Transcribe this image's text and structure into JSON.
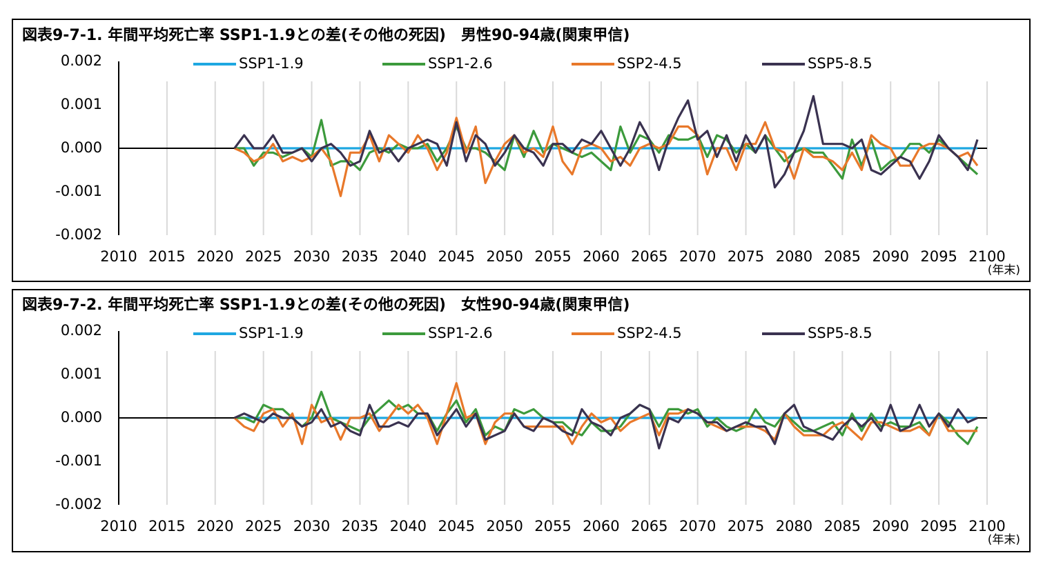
{
  "chart_data": [
    {
      "type": "line",
      "title": "図表9-7-1. 年間平均死亡率 SSP1-1.9との差(その他の死因)　男性90-94歳(関東甲信)",
      "x_unit_label": "(年末)",
      "x": [
        2022,
        2023,
        2024,
        2025,
        2026,
        2027,
        2028,
        2029,
        2030,
        2031,
        2032,
        2033,
        2034,
        2035,
        2036,
        2037,
        2038,
        2039,
        2040,
        2041,
        2042,
        2043,
        2044,
        2045,
        2046,
        2047,
        2048,
        2049,
        2050,
        2051,
        2052,
        2053,
        2054,
        2055,
        2056,
        2057,
        2058,
        2059,
        2060,
        2061,
        2062,
        2063,
        2064,
        2065,
        2066,
        2067,
        2068,
        2069,
        2070,
        2071,
        2072,
        2073,
        2074,
        2075,
        2076,
        2077,
        2078,
        2079,
        2080,
        2081,
        2082,
        2083,
        2084,
        2085,
        2086,
        2087,
        2088,
        2089,
        2090,
        2091,
        2092,
        2093,
        2094,
        2095,
        2096,
        2097,
        2098,
        2099
      ],
      "xlim": [
        2010,
        2100
      ],
      "xticks": [
        2010,
        2015,
        2020,
        2025,
        2030,
        2035,
        2040,
        2045,
        2050,
        2055,
        2060,
        2065,
        2070,
        2075,
        2080,
        2085,
        2090,
        2095,
        2100
      ],
      "ylim": [
        -0.002,
        0.002
      ],
      "yticks": [
        {
          "value": 0.002,
          "label": "0.002"
        },
        {
          "value": 0.001,
          "label": "0.001"
        },
        {
          "value": 0,
          "label": "0.000"
        },
        {
          "value": -0.001,
          "label": "-0.001"
        },
        {
          "value": -0.002,
          "label": "-0.002"
        }
      ],
      "grid": true,
      "series": [
        {
          "name": "SSP1-1.9",
          "color": "#1ea7e1",
          "values": [
            0,
            0,
            0,
            0,
            0,
            0,
            0,
            0,
            0,
            0,
            0,
            0,
            0,
            0,
            0,
            0,
            0,
            0,
            0,
            0,
            0,
            0,
            0,
            0,
            0,
            0,
            0,
            0,
            0,
            0,
            0,
            0,
            0,
            0,
            0,
            0,
            0,
            0,
            0,
            0,
            0,
            0,
            0,
            0,
            0,
            0,
            0,
            0,
            0,
            0,
            0,
            0,
            0,
            0,
            0,
            0,
            0,
            0,
            0,
            0,
            0,
            0,
            0,
            0,
            0,
            0,
            0,
            0,
            0,
            0,
            0,
            0,
            0,
            0,
            0,
            0,
            0,
            0
          ]
        },
        {
          "name": "SSP1-2.6",
          "color": "#3c9a3c",
          "values": [
            0,
            0,
            -0.0004,
            -0.0001,
            -0.0001,
            -0.0002,
            -0.0001,
            0,
            -0.0002,
            0.00065,
            -0.0004,
            -0.0003,
            -0.0003,
            -0.0005,
            -0.0001,
            0,
            -0.0001,
            0.0001,
            0,
            0,
            0.0001,
            -0.0003,
            0,
            0.0005,
            0,
            0,
            -0.0001,
            -0.0003,
            -0.0005,
            0.0003,
            -0.0002,
            0.0004,
            -0.0001,
            0.0001,
            0,
            -0.0001,
            -0.0002,
            -0.0001,
            -0.0003,
            -0.0005,
            0.0005,
            -0.0001,
            0.0003,
            0.0002,
            -0.0001,
            0.0003,
            0.0002,
            0.0002,
            0.0003,
            -0.0002,
            0.0003,
            0.0002,
            -0.0001,
            0.0001,
            -0.0001,
            0.0003,
            0,
            -0.0003,
            -0.0001,
            0,
            -0.0001,
            -0.0001,
            -0.0004,
            -0.0007,
            0.0002,
            -0.0004,
            0.0002,
            -0.0005,
            -0.0003,
            -0.0002,
            0.0001,
            0.0001,
            -0.0001,
            0.0002,
            0,
            -0.0002,
            -0.0004,
            -0.0006
          ]
        },
        {
          "name": "SSP2-4.5",
          "color": "#e8782a",
          "values": [
            0,
            -0.0001,
            -0.0003,
            -0.0002,
            0.0001,
            -0.0003,
            -0.0002,
            -0.0003,
            -0.0002,
            0,
            -0.0003,
            -0.0011,
            -0.0001,
            -0.0001,
            0.0003,
            -0.0003,
            0.0003,
            0.0001,
            -0.0001,
            0.0003,
            0,
            -0.0005,
            -0.0001,
            0.0007,
            -0.0001,
            0.0005,
            -0.0008,
            -0.0003,
            0.0001,
            0.0003,
            -0.0001,
            0,
            -0.0002,
            0.0005,
            -0.0003,
            -0.0006,
            0,
            0.0001,
            0,
            -0.0003,
            -0.0002,
            -0.0004,
            0,
            0.0001,
            0,
            0.0001,
            0.0005,
            0.0005,
            0.0003,
            -0.0006,
            0,
            0,
            -0.0005,
            0.0001,
            0.0001,
            0.0006,
            0,
            -0.0001,
            -0.0007,
            0,
            -0.0002,
            -0.0002,
            -0.0003,
            -0.0005,
            -0.0001,
            -0.0005,
            0.0003,
            0.0001,
            0,
            -0.0004,
            -0.0004,
            0,
            0.0001,
            0.0001,
            0,
            -0.0002,
            -0.0001,
            -0.0004
          ]
        },
        {
          "name": "SSP5-8.5",
          "color": "#3a3250",
          "values": [
            0,
            0.0003,
            0,
            0,
            0.0003,
            -0.0001,
            -0.0001,
            0,
            -0.0003,
            0,
            0.0001,
            -0.0001,
            -0.0004,
            -0.0003,
            0.0004,
            -0.0001,
            0,
            -0.0003,
            0,
            0.0001,
            0.0002,
            0.0001,
            -0.0004,
            0.0006,
            -0.0003,
            0.0003,
            0.0001,
            -0.0004,
            -0.0001,
            0.0003,
            0,
            -0.0001,
            -0.0004,
            0.0001,
            0.0001,
            -0.0001,
            0.0002,
            0.0001,
            0.0004,
            0,
            -0.0004,
            0,
            0.0006,
            0.0002,
            -0.0005,
            0.0002,
            0.0007,
            0.0011,
            0.0002,
            0.0004,
            -0.0002,
            0.0003,
            -0.0003,
            0.0003,
            -0.0001,
            0.0003,
            -0.0009,
            -0.0006,
            -0.0001,
            0.0004,
            0.0012,
            0.0001,
            0.0001,
            0.0001,
            0,
            0.0002,
            -0.0005,
            -0.0006,
            -0.0004,
            -0.0002,
            -0.0003,
            -0.0007,
            -0.0003,
            0.0003,
            0,
            -0.0002,
            -0.0005,
            0.0002
          ]
        }
      ]
    },
    {
      "type": "line",
      "title": "図表9-7-2. 年間平均死亡率 SSP1-1.9との差(その他の死因)　女性90-94歳(関東甲信)",
      "x_unit_label": "(年末)",
      "x": [
        2022,
        2023,
        2024,
        2025,
        2026,
        2027,
        2028,
        2029,
        2030,
        2031,
        2032,
        2033,
        2034,
        2035,
        2036,
        2037,
        2038,
        2039,
        2040,
        2041,
        2042,
        2043,
        2044,
        2045,
        2046,
        2047,
        2048,
        2049,
        2050,
        2051,
        2052,
        2053,
        2054,
        2055,
        2056,
        2057,
        2058,
        2059,
        2060,
        2061,
        2062,
        2063,
        2064,
        2065,
        2066,
        2067,
        2068,
        2069,
        2070,
        2071,
        2072,
        2073,
        2074,
        2075,
        2076,
        2077,
        2078,
        2079,
        2080,
        2081,
        2082,
        2083,
        2084,
        2085,
        2086,
        2087,
        2088,
        2089,
        2090,
        2091,
        2092,
        2093,
        2094,
        2095,
        2096,
        2097,
        2098,
        2099
      ],
      "xlim": [
        2010,
        2100
      ],
      "xticks": [
        2010,
        2015,
        2020,
        2025,
        2030,
        2035,
        2040,
        2045,
        2050,
        2055,
        2060,
        2065,
        2070,
        2075,
        2080,
        2085,
        2090,
        2095,
        2100
      ],
      "ylim": [
        -0.002,
        0.002
      ],
      "yticks": [
        {
          "value": 0.002,
          "label": "0.002"
        },
        {
          "value": 0.001,
          "label": "0.001"
        },
        {
          "value": 0,
          "label": "0.000"
        },
        {
          "value": -0.001,
          "label": "-0.001"
        },
        {
          "value": -0.002,
          "label": "-0.002"
        }
      ],
      "grid": true,
      "series": [
        {
          "name": "SSP1-1.9",
          "color": "#1ea7e1",
          "values": [
            0,
            0,
            0,
            0,
            0,
            0,
            0,
            0,
            0,
            0,
            0,
            0,
            0,
            0,
            0,
            0,
            0,
            0,
            0,
            0,
            0,
            0,
            0,
            0,
            0,
            0,
            0,
            0,
            0,
            0,
            0,
            0,
            0,
            0,
            0,
            0,
            0,
            0,
            0,
            0,
            0,
            0,
            0,
            0,
            0,
            0,
            0,
            0,
            0,
            0,
            0,
            0,
            0,
            0,
            0,
            0,
            0,
            0,
            0,
            0,
            0,
            0,
            0,
            0,
            0,
            0,
            0,
            0,
            0,
            0,
            0,
            0,
            0,
            0,
            0,
            0,
            0,
            0
          ]
        },
        {
          "name": "SSP1-2.6",
          "color": "#3c9a3c",
          "values": [
            0,
            0,
            -0.0001,
            0.0003,
            0.0002,
            0.0002,
            0,
            -0.0002,
            0,
            0.0006,
            0,
            -0.0001,
            -0.0002,
            -0.0003,
            0,
            0.0002,
            0.0004,
            0.0002,
            0.0003,
            0.0001,
            0.0001,
            -0.0003,
            0.0001,
            0.0004,
            -0.0001,
            0.0002,
            -0.0004,
            -0.0002,
            -0.0003,
            0.0002,
            0.0001,
            0.0002,
            0,
            -0.0001,
            -0.0001,
            -0.0003,
            -0.0004,
            -0.0001,
            -0.0003,
            -0.0003,
            -0.0002,
            0.0001,
            0.0003,
            0.0002,
            -0.0002,
            0.0002,
            0.0002,
            0.0001,
            0.0002,
            -0.0002,
            0,
            -0.0002,
            -0.0003,
            -0.0002,
            0.0002,
            -0.0001,
            -0.0002,
            0.0001,
            -0.0001,
            -0.0003,
            -0.0003,
            -0.0002,
            -0.0001,
            -0.0004,
            0.0001,
            -0.0003,
            0.0001,
            -0.0002,
            -0.0001,
            -0.0002,
            -0.0002,
            -0.0001,
            -0.0004,
            0.0001,
            -0.0001,
            -0.0004,
            -0.0006,
            -0.0002
          ]
        },
        {
          "name": "SSP2-4.5",
          "color": "#e8782a",
          "values": [
            0,
            -0.0002,
            -0.0003,
            0.0001,
            0.0002,
            -0.0002,
            0.0001,
            -0.0006,
            0.0003,
            -0.0001,
            0,
            -0.0005,
            0,
            0,
            0.0001,
            -0.0003,
            0,
            0.0003,
            0.0001,
            0.0003,
            0,
            -0.0006,
            0.0001,
            0.0008,
            0,
            0.0001,
            -0.0006,
            -0.0001,
            0.0001,
            0.0001,
            -0.0002,
            -0.0002,
            -0.0002,
            -0.0002,
            -0.0002,
            -0.0006,
            -0.0002,
            0.0001,
            -0.0001,
            0,
            -0.0003,
            -0.0001,
            0,
            0.0001,
            -0.0004,
            0.0001,
            0.0001,
            0.0002,
            0.0001,
            -0.0001,
            -0.0002,
            -0.0003,
            -0.0002,
            -0.0002,
            -0.0002,
            -0.0003,
            -0.0005,
            0.0001,
            -0.0002,
            -0.0004,
            -0.0004,
            -0.0004,
            -0.0002,
            -0.0001,
            -0.0003,
            -0.0005,
            -0.0001,
            -0.0001,
            -0.0002,
            -0.0003,
            -0.0003,
            -0.0002,
            -0.0004,
            0.0001,
            -0.0003,
            -0.0003,
            -0.0003,
            -0.0003
          ]
        },
        {
          "name": "SSP5-8.5",
          "color": "#3a3250",
          "values": [
            0,
            0.0001,
            0,
            -0.0001,
            0.0001,
            0,
            0,
            -0.0002,
            -0.0001,
            0.0002,
            -0.0002,
            -0.0001,
            -0.0003,
            -0.0004,
            0.0003,
            -0.0002,
            -0.0002,
            -0.0001,
            -0.0002,
            0.0001,
            0.0001,
            -0.0004,
            -0.0001,
            0.0002,
            -0.0002,
            0.0001,
            -0.0005,
            -0.0004,
            -0.0003,
            0.0001,
            -0.0002,
            -0.0003,
            0,
            -0.0001,
            -0.0003,
            -0.0004,
            0.0002,
            -0.0001,
            -0.0002,
            -0.0004,
            0,
            0.0001,
            0.0003,
            0.0002,
            -0.0007,
            0,
            -0.0001,
            0.0002,
            0.0001,
            -0.0001,
            -0.0001,
            -0.0003,
            -0.0002,
            -0.0001,
            -0.0002,
            -0.0002,
            -0.0006,
            0.0001,
            0.0003,
            -0.0002,
            -0.0003,
            -0.0004,
            -0.0005,
            -0.0002,
            0,
            -0.0002,
            0,
            -0.0003,
            0.0003,
            -0.0003,
            -0.0002,
            0.0003,
            -0.0002,
            0.0001,
            -0.0002,
            0.0002,
            -0.0001,
            0
          ]
        }
      ]
    }
  ]
}
